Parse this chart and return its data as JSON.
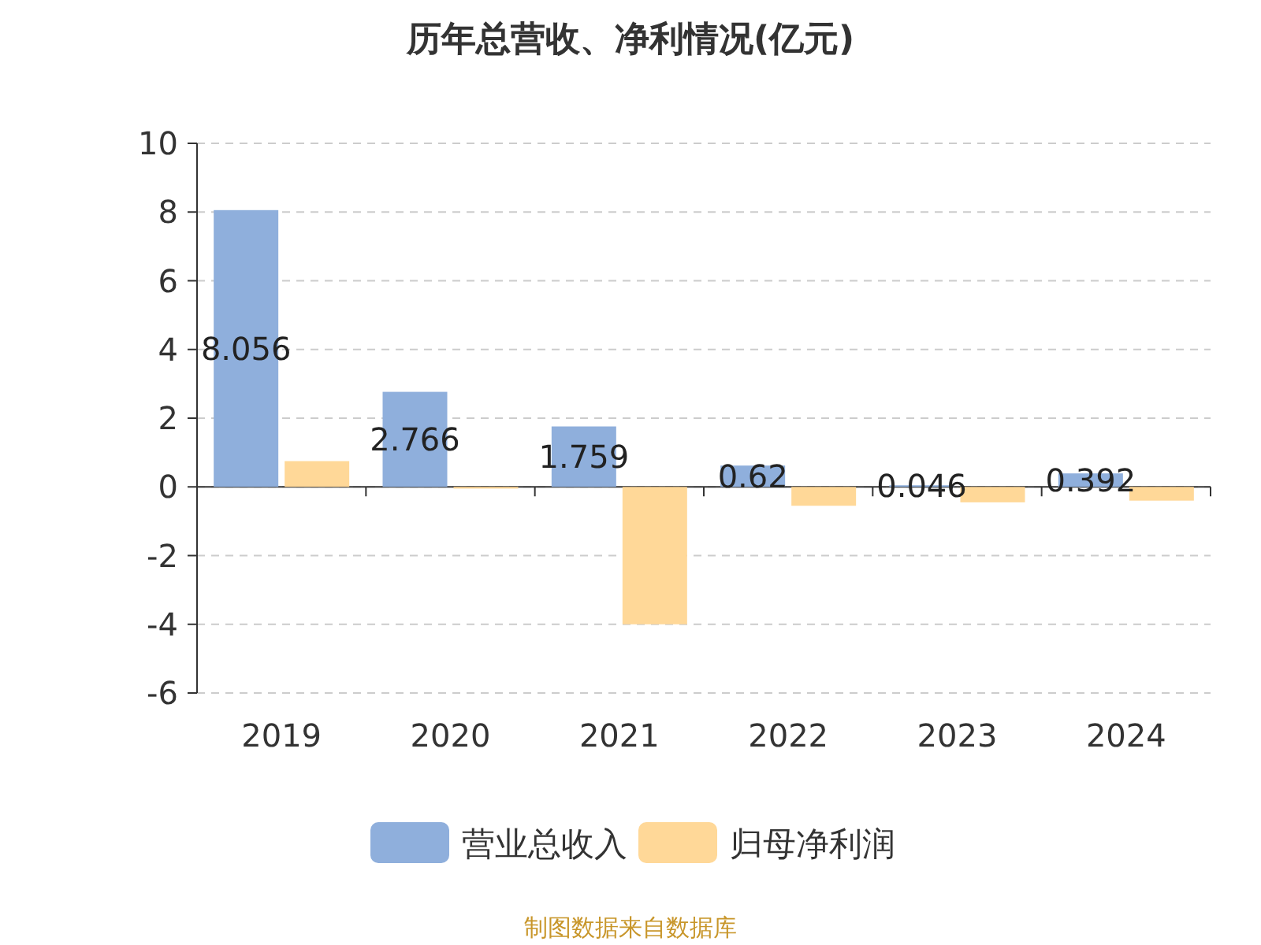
{
  "chart_data": {
    "type": "bar",
    "title": "历年总营收、净利情况(亿元)",
    "categories": [
      "2019",
      "2020",
      "2021",
      "2022",
      "2023",
      "2024"
    ],
    "series": [
      {
        "name": "营业总收入",
        "color": "#8fafdc",
        "values": [
          8.056,
          2.766,
          1.759,
          0.62,
          0.046,
          0.392
        ],
        "value_labels": [
          "8.056",
          "2.766",
          "1.759",
          "0.62",
          "0.046",
          "0.392"
        ]
      },
      {
        "name": "归母净利润",
        "color": "#ffd898",
        "values": [
          0.75,
          -0.05,
          -4.0,
          -0.55,
          -0.45,
          -0.4
        ]
      }
    ],
    "ylim": [
      -6,
      10
    ],
    "yticks": [
      -6,
      -4,
      -2,
      0,
      2,
      4,
      6,
      8,
      10
    ],
    "grid": "y",
    "legend": "bottom",
    "annotations": [
      "制图数据来自数据库"
    ]
  }
}
